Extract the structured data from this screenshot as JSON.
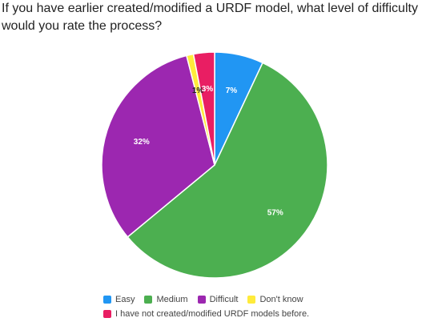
{
  "chart_data": {
    "type": "pie",
    "title": "If you have earlier created/modified a URDF model, what level of difficulty would you rate the process?",
    "categories": [
      "Easy",
      "Medium",
      "Difficult",
      "Don't know",
      "I have not created/modified URDF models before."
    ],
    "values": [
      7,
      57,
      32,
      1,
      3
    ],
    "data_labels": [
      "7%",
      "57%",
      "32%",
      "1%",
      "3%"
    ],
    "colors": [
      "#2196f3",
      "#4caf50",
      "#9c27b0",
      "#ffeb3b",
      "#e91e63"
    ],
    "legend_position": "bottom"
  }
}
